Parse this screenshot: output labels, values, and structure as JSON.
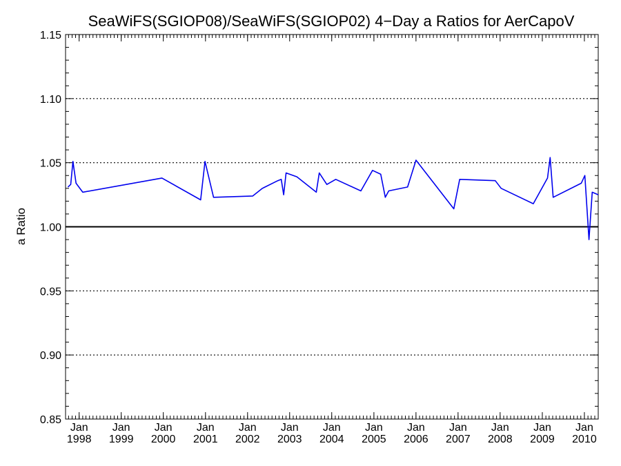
{
  "chart_data": {
    "type": "line",
    "title": "SeaWiFS(SGIOP08)/SeaWiFS(SGIOP02) 4−Day a Ratios for AerCapoV",
    "xlabel": "",
    "ylabel": "a Ratio",
    "ylim": [
      0.85,
      1.15
    ],
    "xlim": [
      "1997-09-05",
      "2010-05-01"
    ],
    "yticks": [
      0.85,
      0.9,
      0.95,
      1.0,
      1.05,
      1.1,
      1.15
    ],
    "ytick_labels": [
      "0.85",
      "0.90",
      "0.95",
      "1.00",
      "1.05",
      "1.10",
      "1.15"
    ],
    "xticks": [
      {
        "date": "1998-01-01",
        "month": "Jan",
        "year": "1998"
      },
      {
        "date": "1999-01-01",
        "month": "Jan",
        "year": "1999"
      },
      {
        "date": "2000-01-01",
        "month": "Jan",
        "year": "2000"
      },
      {
        "date": "2001-01-01",
        "month": "Jan",
        "year": "2001"
      },
      {
        "date": "2002-01-01",
        "month": "Jan",
        "year": "2002"
      },
      {
        "date": "2003-01-01",
        "month": "Jan",
        "year": "2003"
      },
      {
        "date": "2004-01-01",
        "month": "Jan",
        "year": "2004"
      },
      {
        "date": "2005-01-01",
        "month": "Jan",
        "year": "2005"
      },
      {
        "date": "2006-01-01",
        "month": "Jan",
        "year": "2006"
      },
      {
        "date": "2007-01-01",
        "month": "Jan",
        "year": "2007"
      },
      {
        "date": "2008-01-01",
        "month": "Jan",
        "year": "2008"
      },
      {
        "date": "2009-01-01",
        "month": "Jan",
        "year": "2009"
      },
      {
        "date": "2010-01-01",
        "month": "Jan",
        "year": "2010"
      }
    ],
    "grid": "dotted horizontal at labeled y ticks",
    "reference_line": 1.0,
    "series": [
      {
        "color": "#0000ee",
        "x": [
          "1997-09-26",
          "1997-10-20",
          "1997-11-08",
          "1997-12-05",
          "1998-02-01",
          "1999-12-20",
          "2000-11-20",
          "2000-12-28",
          "2001-03-12",
          "2002-02-15",
          "2002-05-10",
          "2002-09-20",
          "2002-10-20",
          "2002-11-10",
          "2002-12-01",
          "2003-03-05",
          "2003-08-20",
          "2003-09-15",
          "2003-11-20",
          "2004-02-05",
          "2004-09-10",
          "2004-12-20",
          "2005-03-01",
          "2005-04-10",
          "2005-05-10",
          "2005-10-20",
          "2006-01-01",
          "2006-11-25",
          "2007-01-15",
          "2007-11-20",
          "2008-01-10",
          "2008-10-15",
          "2009-02-15",
          "2009-03-10",
          "2009-04-05",
          "2009-12-05",
          "2010-01-05",
          "2010-02-10",
          "2010-03-10",
          "2010-05-01"
        ],
        "values": [
          1.031,
          1.033,
          1.051,
          1.034,
          1.027,
          1.038,
          1.021,
          1.051,
          1.023,
          1.024,
          1.03,
          1.036,
          1.037,
          1.025,
          1.042,
          1.039,
          1.027,
          1.042,
          1.033,
          1.037,
          1.028,
          1.044,
          1.041,
          1.023,
          1.028,
          1.031,
          1.052,
          1.014,
          1.037,
          1.036,
          1.03,
          1.018,
          1.038,
          1.054,
          1.023,
          1.034,
          1.04,
          0.99,
          1.027,
          1.025
        ]
      }
    ]
  }
}
